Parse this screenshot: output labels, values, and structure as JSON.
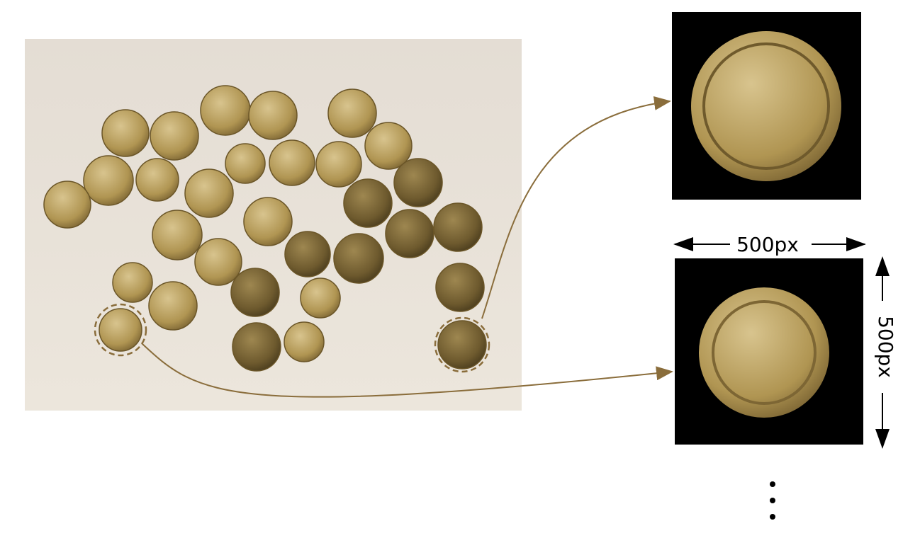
{
  "dimensions": {
    "width_label": "500px",
    "height_label": "500px"
  }
}
